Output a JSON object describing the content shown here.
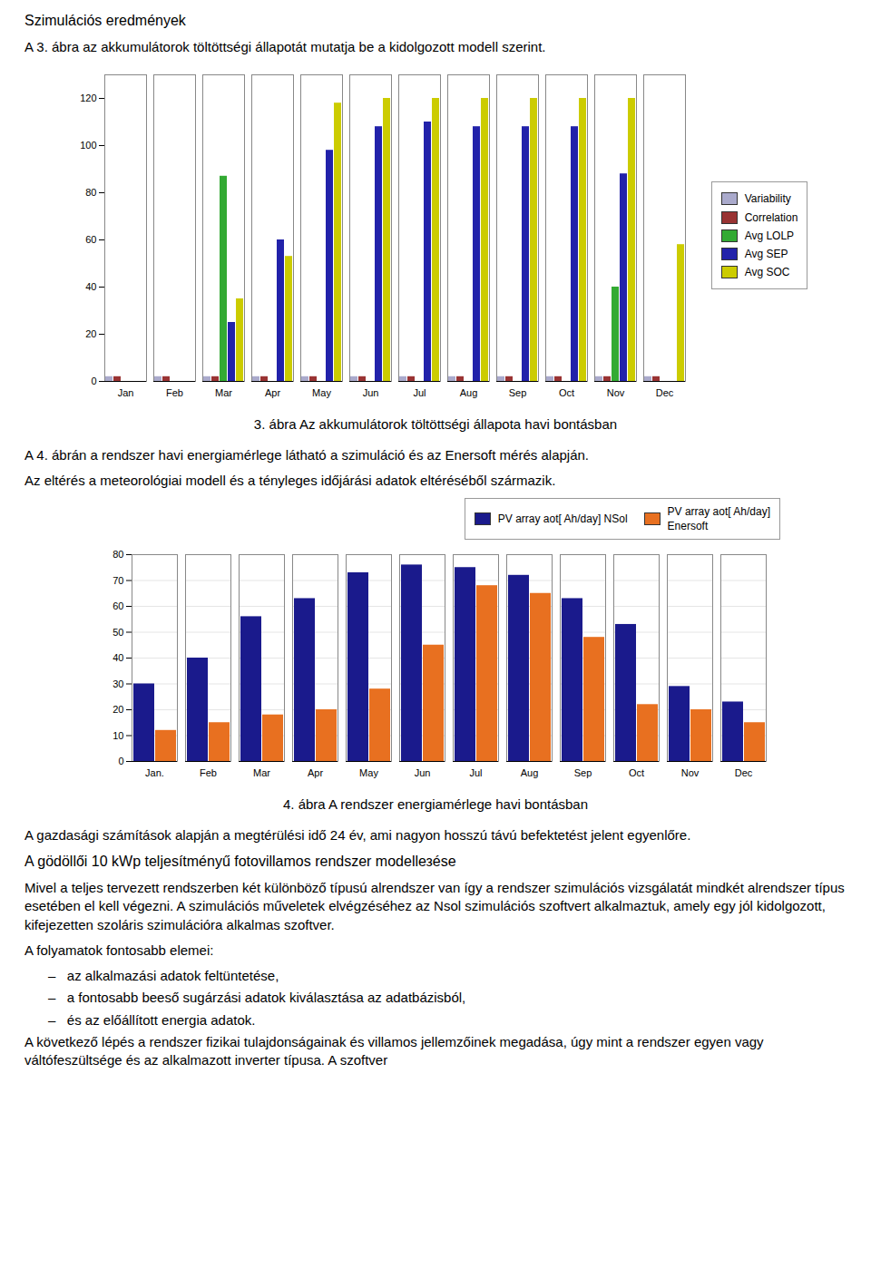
{
  "chart_data": [
    {
      "type": "bar",
      "caption": "3. ábra Az akkumulátorok töltöttségi állapota havi bontásban",
      "categories": [
        "Jan",
        "Feb",
        "Mar",
        "Apr",
        "May",
        "Jun",
        "Jul",
        "Aug",
        "Sep",
        "Oct",
        "Nov",
        "Dec"
      ],
      "series": [
        {
          "name": "Variability",
          "color": "#aaaacc",
          "values": [
            2,
            2,
            2,
            2,
            2,
            2,
            2,
            2,
            2,
            2,
            2,
            2
          ]
        },
        {
          "name": "Correlation",
          "color": "#993333",
          "values": [
            2,
            2,
            2,
            2,
            2,
            2,
            2,
            2,
            2,
            2,
            2,
            2
          ]
        },
        {
          "name": "Avg LOLP",
          "color": "#33aa33",
          "values": [
            0,
            0,
            87,
            0,
            0,
            0,
            0,
            0,
            0,
            0,
            40,
            0
          ]
        },
        {
          "name": "Avg SEP",
          "color": "#2222aa",
          "values": [
            0,
            0,
            25,
            60,
            98,
            108,
            110,
            108,
            108,
            108,
            88,
            0
          ]
        },
        {
          "name": "Avg SOC",
          "color": "#cccc00",
          "values": [
            0,
            0,
            35,
            53,
            118,
            120,
            120,
            120,
            120,
            120,
            120,
            58
          ]
        }
      ],
      "ylim": [
        0,
        130
      ],
      "yticks": [
        0,
        20,
        40,
        60,
        80,
        100,
        120
      ],
      "grid": false,
      "legend": "right"
    },
    {
      "type": "bar",
      "caption": "4. ábra A rendszer energiamérlege havi bontásban",
      "categories": [
        "Jan.",
        "Feb",
        "Mar",
        "Apr",
        "May",
        "Jun",
        "Jul",
        "Aug",
        "Sep",
        "Oct",
        "Nov",
        "Dec"
      ],
      "series": [
        {
          "name": "PV array aot[ Ah/day] NSol",
          "color": "#1a1a8c",
          "values": [
            30,
            40,
            56,
            63,
            73,
            76,
            75,
            72,
            63,
            53,
            29,
            23
          ]
        },
        {
          "name": "PV array aot[ Ah/day]\nEnersoft",
          "color": "#e87020",
          "values": [
            12,
            15,
            18,
            20,
            28,
            45,
            68,
            65,
            48,
            22,
            20,
            15
          ]
        }
      ],
      "ylim": [
        0,
        80
      ],
      "yticks": [
        0,
        10,
        20,
        30,
        40,
        50,
        60,
        70,
        80
      ],
      "grid": true,
      "legend": "upper right"
    }
  ],
  "texts": {
    "heading1": "Szimulációs eredmények",
    "para1": "A 3. ábra az akkumulátorok töltöttségi állapotát mutatja be a kidolgozott modell szerint.",
    "para2": "A 4. ábrán a rendszer havi energiamérlege látható a szimuláció és az Enersoft mérés alapján.",
    "para3": "Az eltérés a meteorológiai modell és a tényleges időjárási adatok eltéréséből származik.",
    "para4": "A gazdasági számítások alapján a megtérülési idő 24 év, ami nagyon hosszú távú befektetést jelent egyenlőre.",
    "heading2": "A gödöllői 10 kWp teljesítményű fotovillamos rendszer modellезése",
    "para5": "Mivel a teljes tervezett rendszerben két különböző típusú alrendszer van így a rendszer szimulációs vizsgálatát mindkét alrendszer típus esetében el kell végezni. A szimulációs műveletek elvégzéséhez az Nsol szimulációs szoftvert alkalmaztuk, amely egy jól kidolgozott, kifejezetten szoláris szimulációra alkalmas szoftver.",
    "para6_head": "A folyamatok fontosabb elemei:",
    "bullet1": "–   az alkalmazási adatok feltüntetése,",
    "bullet2": "–   a fontosabb beeső sugárzási adatok kiválasztása az adatbázisból,",
    "bullet3": "–   és az előállított energia adatok.",
    "para7": "A következő lépés a rendszer fizikai tulajdonságainak és villamos jellemzőinek megadása, úgy mint a rendszer egyen vagy váltófeszültsége és az alkalmazott inverter típusa. A szoftver"
  }
}
